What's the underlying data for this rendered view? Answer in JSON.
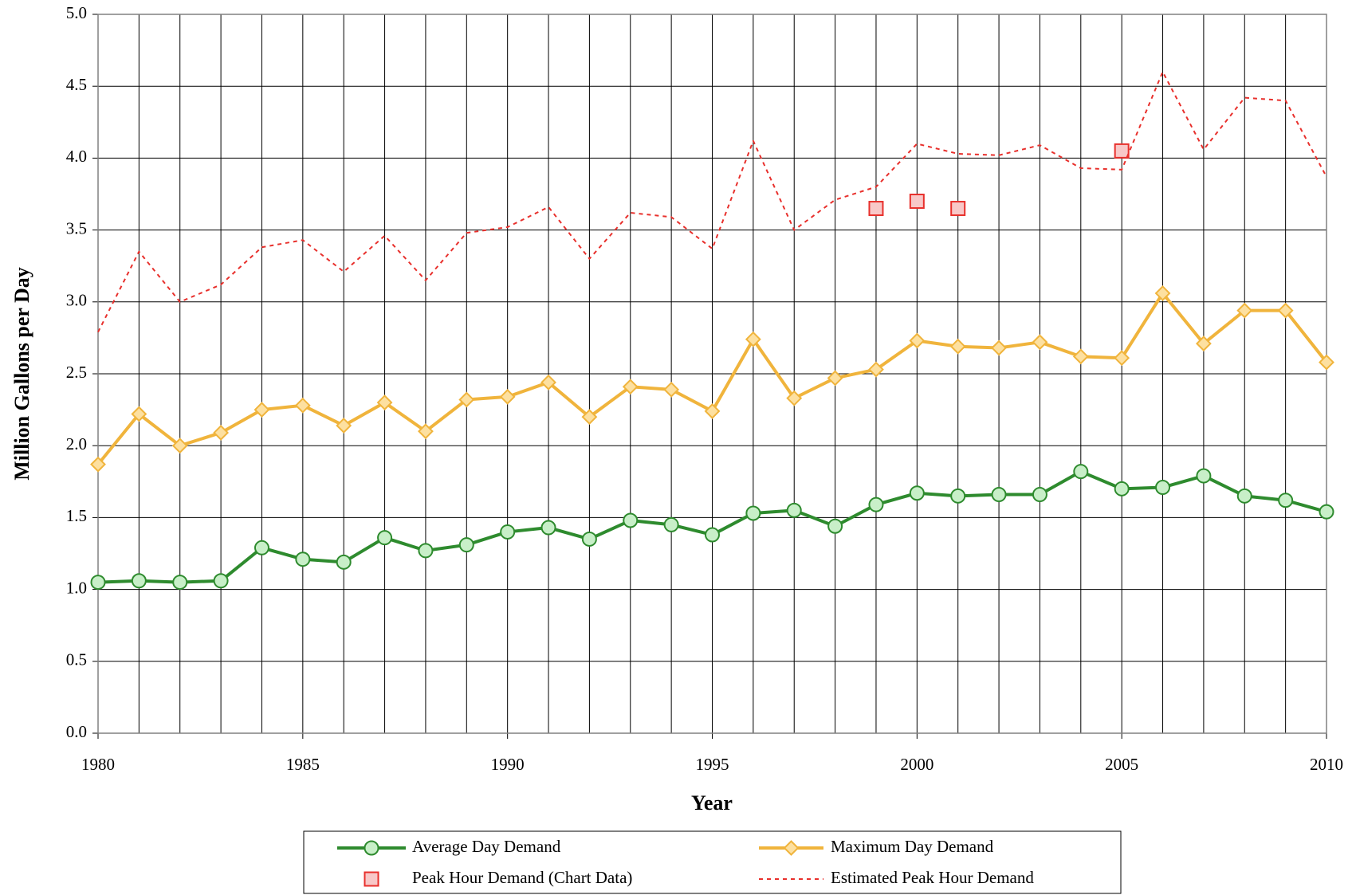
{
  "chart_data": {
    "type": "line",
    "xlabel": "Year",
    "ylabel": "Million Gallons per Day",
    "x": [
      1980,
      1981,
      1982,
      1983,
      1984,
      1985,
      1986,
      1987,
      1988,
      1989,
      1990,
      1991,
      1992,
      1993,
      1994,
      1995,
      1996,
      1997,
      1998,
      1999,
      2000,
      2001,
      2002,
      2003,
      2004,
      2005,
      2006,
      2007,
      2008,
      2009,
      2010
    ],
    "xlim": [
      1980,
      2010
    ],
    "xticks": [
      1980,
      1985,
      1990,
      1995,
      2000,
      2005,
      2010
    ],
    "ylim": [
      0,
      5
    ],
    "yticks": [
      {
        "value": 0,
        "label": "0.0"
      },
      0.5,
      {
        "value": 1,
        "label": "1.0"
      },
      1.5,
      {
        "value": 2,
        "label": "2.0"
      },
      2.5,
      {
        "value": 3,
        "label": "3.0"
      },
      3.5,
      {
        "value": 4,
        "label": "4.0"
      },
      4.5,
      {
        "value": 5,
        "label": "5.0"
      }
    ],
    "grid": true,
    "legend": "bottom",
    "series": [
      {
        "name": "Average Day Demand",
        "color": "#2e8b2e",
        "marker": "circle",
        "marker_fill": "#c8efc8",
        "dashed": false,
        "values": [
          1.05,
          1.06,
          1.05,
          1.06,
          1.29,
          1.21,
          1.19,
          1.36,
          1.27,
          1.31,
          1.4,
          1.43,
          1.35,
          1.48,
          1.45,
          1.38,
          1.53,
          1.55,
          1.44,
          1.59,
          1.67,
          1.65,
          1.66,
          1.66,
          1.82,
          1.7,
          1.71,
          1.79,
          1.65,
          1.62,
          1.54
        ]
      },
      {
        "name": "Maximum Day Demand",
        "color": "#f0b43c",
        "marker": "diamond",
        "marker_fill": "#fde0a0",
        "dashed": false,
        "values": [
          1.87,
          2.22,
          2.0,
          2.09,
          2.25,
          2.28,
          2.14,
          2.3,
          2.1,
          2.32,
          2.34,
          2.44,
          2.2,
          2.41,
          2.39,
          2.24,
          2.74,
          2.33,
          2.47,
          2.53,
          2.73,
          2.69,
          2.68,
          2.72,
          2.62,
          2.61,
          3.06,
          2.71,
          2.94,
          2.94,
          2.58
        ]
      },
      {
        "name": "Peak Hour Demand (Chart Data)",
        "color": "#e8302c",
        "marker": "square",
        "marker_fill": "#f8c8c8",
        "line": false,
        "x": [
          1999,
          2000,
          2001,
          2005
        ],
        "values": [
          3.65,
          3.7,
          3.65,
          4.05
        ]
      },
      {
        "name": "Estimated Peak Hour Demand",
        "color": "#e8302c",
        "marker": null,
        "dashed": true,
        "values": [
          2.79,
          3.35,
          3.0,
          3.12,
          3.38,
          3.43,
          3.21,
          3.46,
          3.15,
          3.48,
          3.52,
          3.66,
          3.3,
          3.62,
          3.59,
          3.37,
          4.12,
          3.5,
          3.71,
          3.8,
          4.1,
          4.03,
          4.02,
          4.09,
          3.93,
          3.92,
          4.6,
          4.06,
          4.42,
          4.4,
          3.87
        ]
      }
    ]
  }
}
